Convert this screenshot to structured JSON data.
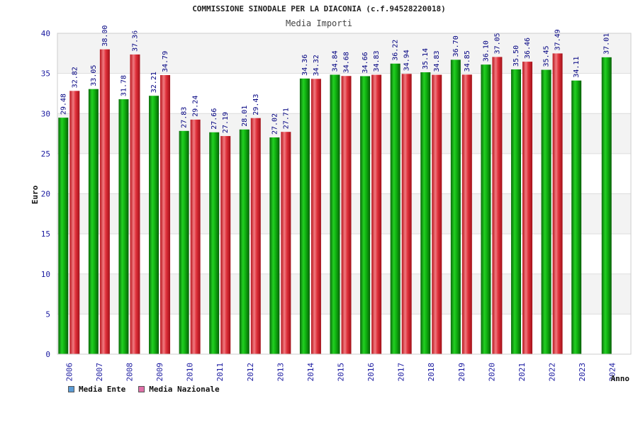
{
  "chart_data": {
    "type": "bar",
    "title": "COMMISSIONE SINODALE PER LA DIACONIA (c.f.94528220018)",
    "subtitle": "Media Importi",
    "xlabel": "Anno",
    "ylabel": "Euro",
    "ylim": [
      0,
      40
    ],
    "yticks": [
      "0",
      "5",
      "10",
      "15",
      "20",
      "25",
      "30",
      "35",
      "40"
    ],
    "categories": [
      "2006",
      "2007",
      "2008",
      "2009",
      "2010",
      "2011",
      "2012",
      "2013",
      "2014",
      "2015",
      "2016",
      "2017",
      "2018",
      "2019",
      "2020",
      "2021",
      "2022",
      "2023",
      "2024"
    ],
    "series": [
      {
        "name": "Media Ente",
        "color": "#00b000",
        "legend_color": "#5b9bd5",
        "values": [
          29.48,
          33.05,
          31.78,
          32.21,
          27.83,
          27.66,
          28.01,
          27.02,
          34.36,
          34.84,
          34.66,
          36.22,
          35.14,
          36.7,
          36.1,
          35.5,
          35.45,
          34.11,
          37.01
        ],
        "labels": [
          "29.48",
          "33.05",
          "31.78",
          "32.21",
          "27.83",
          "27.66",
          "28.01",
          "27.02",
          "34.36",
          "34.84",
          "34.66",
          "36.22",
          "35.14",
          "36.70",
          "36.10",
          "35.50",
          "35.45",
          "34.11",
          "37.01"
        ]
      },
      {
        "name": "Media Nazionale",
        "color": "#e8303a",
        "legend_color": "#e070a8",
        "values": [
          32.82,
          38.0,
          37.36,
          34.79,
          29.24,
          27.19,
          29.43,
          27.71,
          34.32,
          34.68,
          34.83,
          34.94,
          34.83,
          34.85,
          37.05,
          36.46,
          37.49,
          null,
          null
        ],
        "labels": [
          "32.82",
          "38.00",
          "37.36",
          "34.79",
          "29.24",
          "27.19",
          "29.43",
          "27.71",
          "34.32",
          "34.68",
          "34.83",
          "34.94",
          "34.83",
          "34.85",
          "37.05",
          "36.46",
          "37.49",
          "",
          ""
        ]
      }
    ]
  },
  "legend": {
    "ente": "Media Ente",
    "nazionale": "Media Nazionale",
    "ente_color": "#5b9bd5",
    "nazionale_color": "#e070a8"
  }
}
